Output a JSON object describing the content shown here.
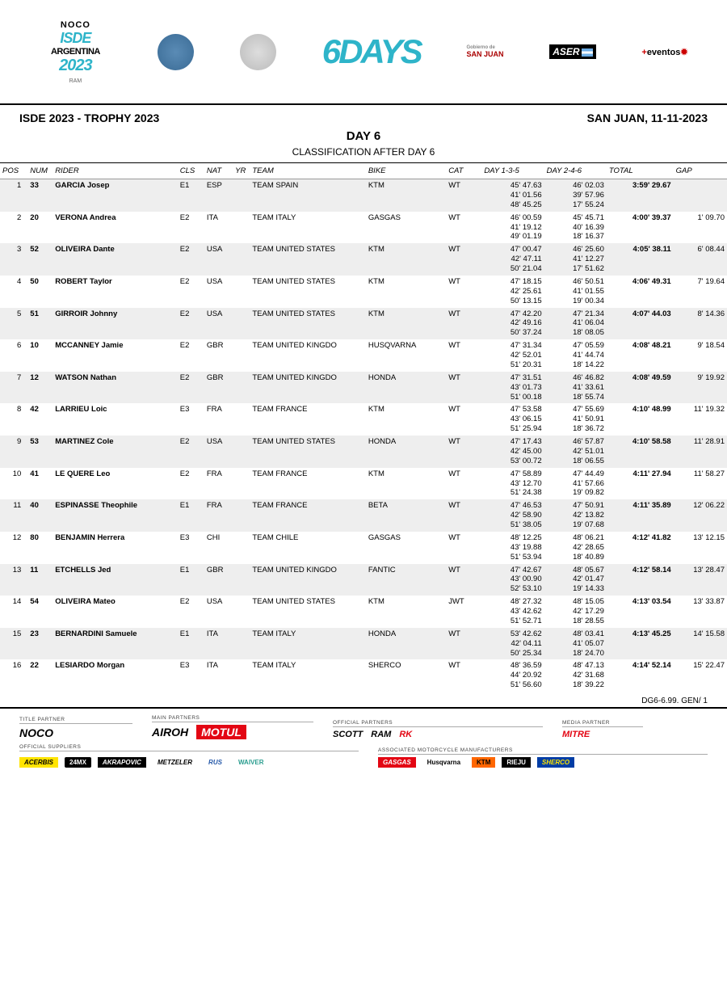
{
  "header": {
    "isde_noco": "NOCO",
    "isde_word": "ISDE",
    "isde_arg": "ARGENTINA",
    "isde_year": "2023",
    "isde_ram": "RAM",
    "sixdays": "6DAYS",
    "sanjuan_pre": "Gobierno de",
    "sanjuan": "SAN JUAN",
    "aser": "ASER",
    "mas_plus": "+",
    "mas_ev": "eventos"
  },
  "title": {
    "left": "ISDE 2023 - TROPHY 2023",
    "right": "SAN JUAN, 11-11-2023",
    "day": "DAY 6",
    "subtitle": "CLASSIFICATION AFTER DAY 6"
  },
  "columns": {
    "pos": "POS",
    "num": "NUM",
    "rider": "RIDER",
    "cls": "CLS",
    "nat": "NAT",
    "yr": "YR",
    "team": "TEAM",
    "bike": "BIKE",
    "cat": "CAT",
    "d135": "DAY 1-3-5",
    "d246": "DAY 2-4-6",
    "total": "TOTAL",
    "gap": "GAP"
  },
  "rows": [
    {
      "pos": "1",
      "num": "33",
      "rider": "GARCIA Josep",
      "cls": "E1",
      "nat": "ESP",
      "team": "TEAM SPAIN",
      "bike": "KTM",
      "cat": "WT",
      "d135": [
        "45' 47.63",
        "41' 01.56",
        "48' 45.25"
      ],
      "d246": [
        "46' 02.03",
        "39' 57.96",
        "17' 55.24"
      ],
      "total": "3:59' 29.67",
      "gap": ""
    },
    {
      "pos": "2",
      "num": "20",
      "rider": "VERONA Andrea",
      "cls": "E2",
      "nat": "ITA",
      "team": "TEAM ITALY",
      "bike": "GASGAS",
      "cat": "WT",
      "d135": [
        "46' 00.59",
        "41' 19.12",
        "49' 01.19"
      ],
      "d246": [
        "45' 45.71",
        "40' 16.39",
        "18' 16.37"
      ],
      "total": "4:00' 39.37",
      "gap": "1' 09.70"
    },
    {
      "pos": "3",
      "num": "52",
      "rider": "OLIVEIRA Dante",
      "cls": "E2",
      "nat": "USA",
      "team": "TEAM UNITED STATES",
      "bike": "KTM",
      "cat": "WT",
      "d135": [
        "47' 00.47",
        "42' 47.11",
        "50' 21.04"
      ],
      "d246": [
        "46' 25.60",
        "41' 12.27",
        "17' 51.62"
      ],
      "total": "4:05' 38.11",
      "gap": "6' 08.44"
    },
    {
      "pos": "4",
      "num": "50",
      "rider": "ROBERT Taylor",
      "cls": "E2",
      "nat": "USA",
      "team": "TEAM UNITED STATES",
      "bike": "KTM",
      "cat": "WT",
      "d135": [
        "47' 18.15",
        "42' 25.61",
        "50' 13.15"
      ],
      "d246": [
        "46' 50.51",
        "41' 01.55",
        "19' 00.34"
      ],
      "total": "4:06' 49.31",
      "gap": "7' 19.64"
    },
    {
      "pos": "5",
      "num": "51",
      "rider": "GIRROIR Johnny",
      "cls": "E2",
      "nat": "USA",
      "team": "TEAM UNITED STATES",
      "bike": "KTM",
      "cat": "WT",
      "d135": [
        "47' 42.20",
        "42' 49.16",
        "50' 37.24"
      ],
      "d246": [
        "47' 21.34",
        "41' 06.04",
        "18' 08.05"
      ],
      "total": "4:07' 44.03",
      "gap": "8' 14.36"
    },
    {
      "pos": "6",
      "num": "10",
      "rider": "MCCANNEY Jamie",
      "cls": "E2",
      "nat": "GBR",
      "team": "TEAM UNITED KINGDO",
      "bike": "HUSQVARNA",
      "cat": "WT",
      "d135": [
        "47' 31.34",
        "42' 52.01",
        "51' 20.31"
      ],
      "d246": [
        "47' 05.59",
        "41' 44.74",
        "18' 14.22"
      ],
      "total": "4:08' 48.21",
      "gap": "9' 18.54"
    },
    {
      "pos": "7",
      "num": "12",
      "rider": "WATSON Nathan",
      "cls": "E2",
      "nat": "GBR",
      "team": "TEAM UNITED KINGDO",
      "bike": "HONDA",
      "cat": "WT",
      "d135": [
        "47' 31.51",
        "43' 01.73",
        "51' 00.18"
      ],
      "d246": [
        "46' 46.82",
        "41' 33.61",
        "18' 55.74"
      ],
      "total": "4:08' 49.59",
      "gap": "9' 19.92"
    },
    {
      "pos": "8",
      "num": "42",
      "rider": "LARRIEU Loic",
      "cls": "E3",
      "nat": "FRA",
      "team": "TEAM FRANCE",
      "bike": "KTM",
      "cat": "WT",
      "d135": [
        "47' 53.58",
        "43' 06.15",
        "51' 25.94"
      ],
      "d246": [
        "47' 55.69",
        "41' 50.91",
        "18' 36.72"
      ],
      "total": "4:10' 48.99",
      "gap": "11' 19.32"
    },
    {
      "pos": "9",
      "num": "53",
      "rider": "MARTINEZ Cole",
      "cls": "E2",
      "nat": "USA",
      "team": "TEAM UNITED STATES",
      "bike": "HONDA",
      "cat": "WT",
      "d135": [
        "47' 17.43",
        "42' 45.00",
        "53' 00.72"
      ],
      "d246": [
        "46' 57.87",
        "42' 51.01",
        "18' 06.55"
      ],
      "total": "4:10' 58.58",
      "gap": "11' 28.91"
    },
    {
      "pos": "10",
      "num": "41",
      "rider": "LE QUERE Leo",
      "cls": "E2",
      "nat": "FRA",
      "team": "TEAM FRANCE",
      "bike": "KTM",
      "cat": "WT",
      "d135": [
        "47' 58.89",
        "43' 12.70",
        "51' 24.38"
      ],
      "d246": [
        "47' 44.49",
        "41' 57.66",
        "19' 09.82"
      ],
      "total": "4:11' 27.94",
      "gap": "11' 58.27"
    },
    {
      "pos": "11",
      "num": "40",
      "rider": "ESPINASSE Theophile",
      "cls": "E1",
      "nat": "FRA",
      "team": "TEAM FRANCE",
      "bike": "BETA",
      "cat": "WT",
      "d135": [
        "47' 46.53",
        "42' 58.90",
        "51' 38.05"
      ],
      "d246": [
        "47' 50.91",
        "42' 13.82",
        "19' 07.68"
      ],
      "total": "4:11' 35.89",
      "gap": "12' 06.22"
    },
    {
      "pos": "12",
      "num": "80",
      "rider": "BENJAMIN Herrera",
      "cls": "E3",
      "nat": "CHI",
      "team": "TEAM CHILE",
      "bike": "GASGAS",
      "cat": "WT",
      "d135": [
        "48' 12.25",
        "43' 19.88",
        "51' 53.94"
      ],
      "d246": [
        "48' 06.21",
        "42' 28.65",
        "18' 40.89"
      ],
      "total": "4:12' 41.82",
      "gap": "13' 12.15"
    },
    {
      "pos": "13",
      "num": "11",
      "rider": "ETCHELLS Jed",
      "cls": "E1",
      "nat": "GBR",
      "team": "TEAM UNITED KINGDO",
      "bike": "FANTIC",
      "cat": "WT",
      "d135": [
        "47' 42.67",
        "43' 00.90",
        "52' 53.10"
      ],
      "d246": [
        "48' 05.67",
        "42' 01.47",
        "19' 14.33"
      ],
      "total": "4:12' 58.14",
      "gap": "13' 28.47"
    },
    {
      "pos": "14",
      "num": "54",
      "rider": "OLIVEIRA Mateo",
      "cls": "E2",
      "nat": "USA",
      "team": "TEAM UNITED STATES",
      "bike": "KTM",
      "cat": "JWT",
      "d135": [
        "48' 27.32",
        "43' 42.62",
        "51' 52.71"
      ],
      "d246": [
        "48' 15.05",
        "42' 17.29",
        "18' 28.55"
      ],
      "total": "4:13' 03.54",
      "gap": "13' 33.87"
    },
    {
      "pos": "15",
      "num": "23",
      "rider": "BERNARDINI Samuele",
      "cls": "E1",
      "nat": "ITA",
      "team": "TEAM ITALY",
      "bike": "HONDA",
      "cat": "WT",
      "d135": [
        "53' 42.62",
        "42' 04.11",
        "50' 25.34"
      ],
      "d246": [
        "48' 03.41",
        "41' 05.07",
        "18' 24.70"
      ],
      "total": "4:13' 45.25",
      "gap": "14' 15.58"
    },
    {
      "pos": "16",
      "num": "22",
      "rider": "LESIARDO Morgan",
      "cls": "E3",
      "nat": "ITA",
      "team": "TEAM ITALY",
      "bike": "SHERCO",
      "cat": "WT",
      "d135": [
        "48' 36.59",
        "44' 20.92",
        "51' 56.60"
      ],
      "d246": [
        "48' 47.13",
        "42' 31.68",
        "18' 39.22"
      ],
      "total": "4:14' 52.14",
      "gap": "15' 22.47"
    }
  ],
  "footer_code": "DG6-6.99. GEN/ 1",
  "partners": {
    "title_label": "TITLE PARTNER",
    "main_label": "MAIN PARTNERS",
    "official_label": "OFFICIAL PARTNERS",
    "media_label": "MEDIA PARTNER",
    "suppliers_label": "OFFICIAL SUPPLIERS",
    "manufacturers_label": "ASSOCIATED MOTORCYCLE MANUFACTURERS",
    "noco": "NOCO",
    "airoh": "AIROH",
    "motul": "MOTUL",
    "scott": "SCOTT",
    "ram": "RAM",
    "rk": "RK",
    "mitre": "MITRE",
    "acerbis": "ACERBIS",
    "mx24": "24MX",
    "akra": "AKRAPOVIC",
    "metzeler": "METZELER",
    "rus": "RUS",
    "waiver": "WAIVER",
    "gasgas": "GASGAS",
    "husq": "Husqvarna",
    "ktm": "KTM",
    "rieju": "RIEJU",
    "sherco": "SHERCO"
  }
}
